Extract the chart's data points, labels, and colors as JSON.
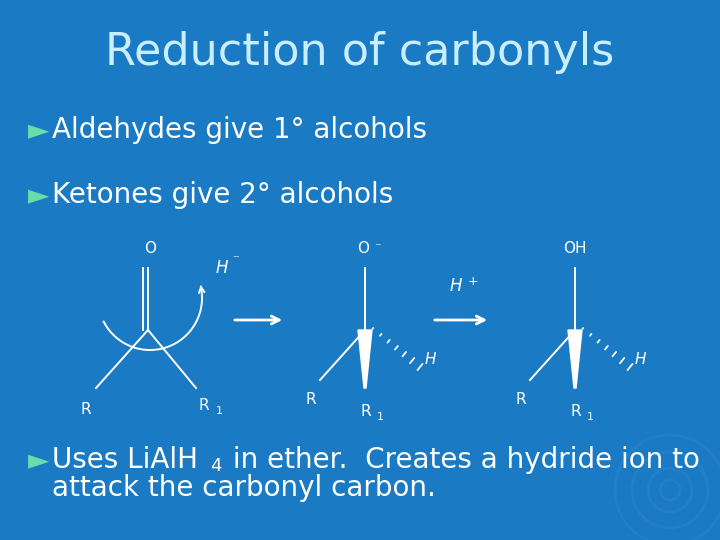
{
  "title": "Reduction of carbonyls",
  "title_color": "#c8eeff",
  "title_fontsize": 32,
  "bg_color": "#1a7bc4",
  "bullet_color": "#66ddaa",
  "text_color": "#ffffff",
  "bullet1": "Aldehydes give 1° alcohols",
  "bullet2": "Ketones give 2° alcohols",
  "bullet3_line1": "Uses LiAlH",
  "bullet3_sub": "4",
  "bullet3_rest": " in ether. Creates a hydride ion to",
  "bullet3_line2": "attack the carbonyl carbon.",
  "bullet_fontsize": 20,
  "chem_color": "#ffffff",
  "bullet_symbol": "►"
}
